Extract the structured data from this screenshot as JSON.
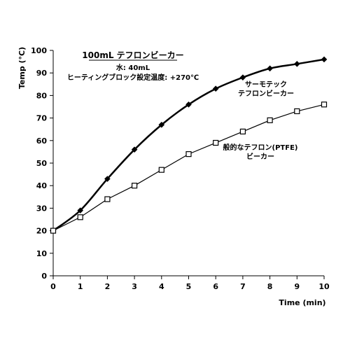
{
  "chart_data": {
    "type": "line",
    "title": "100mL テフロンビーカー",
    "subtitle_lines": [
      "水: 40mL",
      "ヒーティングブロック設定温度: +270℃"
    ],
    "xlabel": "Time (min)",
    "ylabel": "Temp (°C)",
    "xlim": [
      0,
      10
    ],
    "ylim": [
      0,
      100
    ],
    "x_ticks": [
      0,
      1,
      2,
      3,
      4,
      5,
      6,
      7,
      8,
      9,
      10
    ],
    "y_ticks": [
      0,
      10,
      20,
      30,
      40,
      50,
      60,
      70,
      80,
      90,
      100
    ],
    "grid": false,
    "series": [
      {
        "label_lines": [
          "サーモテック",
          "テフロンビーカー"
        ],
        "marker": "filled-diamond",
        "color": "#000000",
        "x": [
          0,
          1,
          2,
          3,
          4,
          5,
          6,
          7,
          8,
          9,
          10
        ],
        "y": [
          20,
          29,
          43,
          56,
          67,
          76,
          83,
          88,
          92,
          94,
          96
        ]
      },
      {
        "label_lines": [
          "般的なテフロン(PTFE)",
          "ビーカー"
        ],
        "marker": "open-square",
        "color": "#000000",
        "x": [
          0,
          1,
          2,
          3,
          4,
          5,
          6,
          7,
          8,
          9,
          10
        ],
        "y": [
          20,
          26,
          34,
          40,
          47,
          54,
          59,
          64,
          69,
          73,
          76
        ]
      }
    ]
  }
}
